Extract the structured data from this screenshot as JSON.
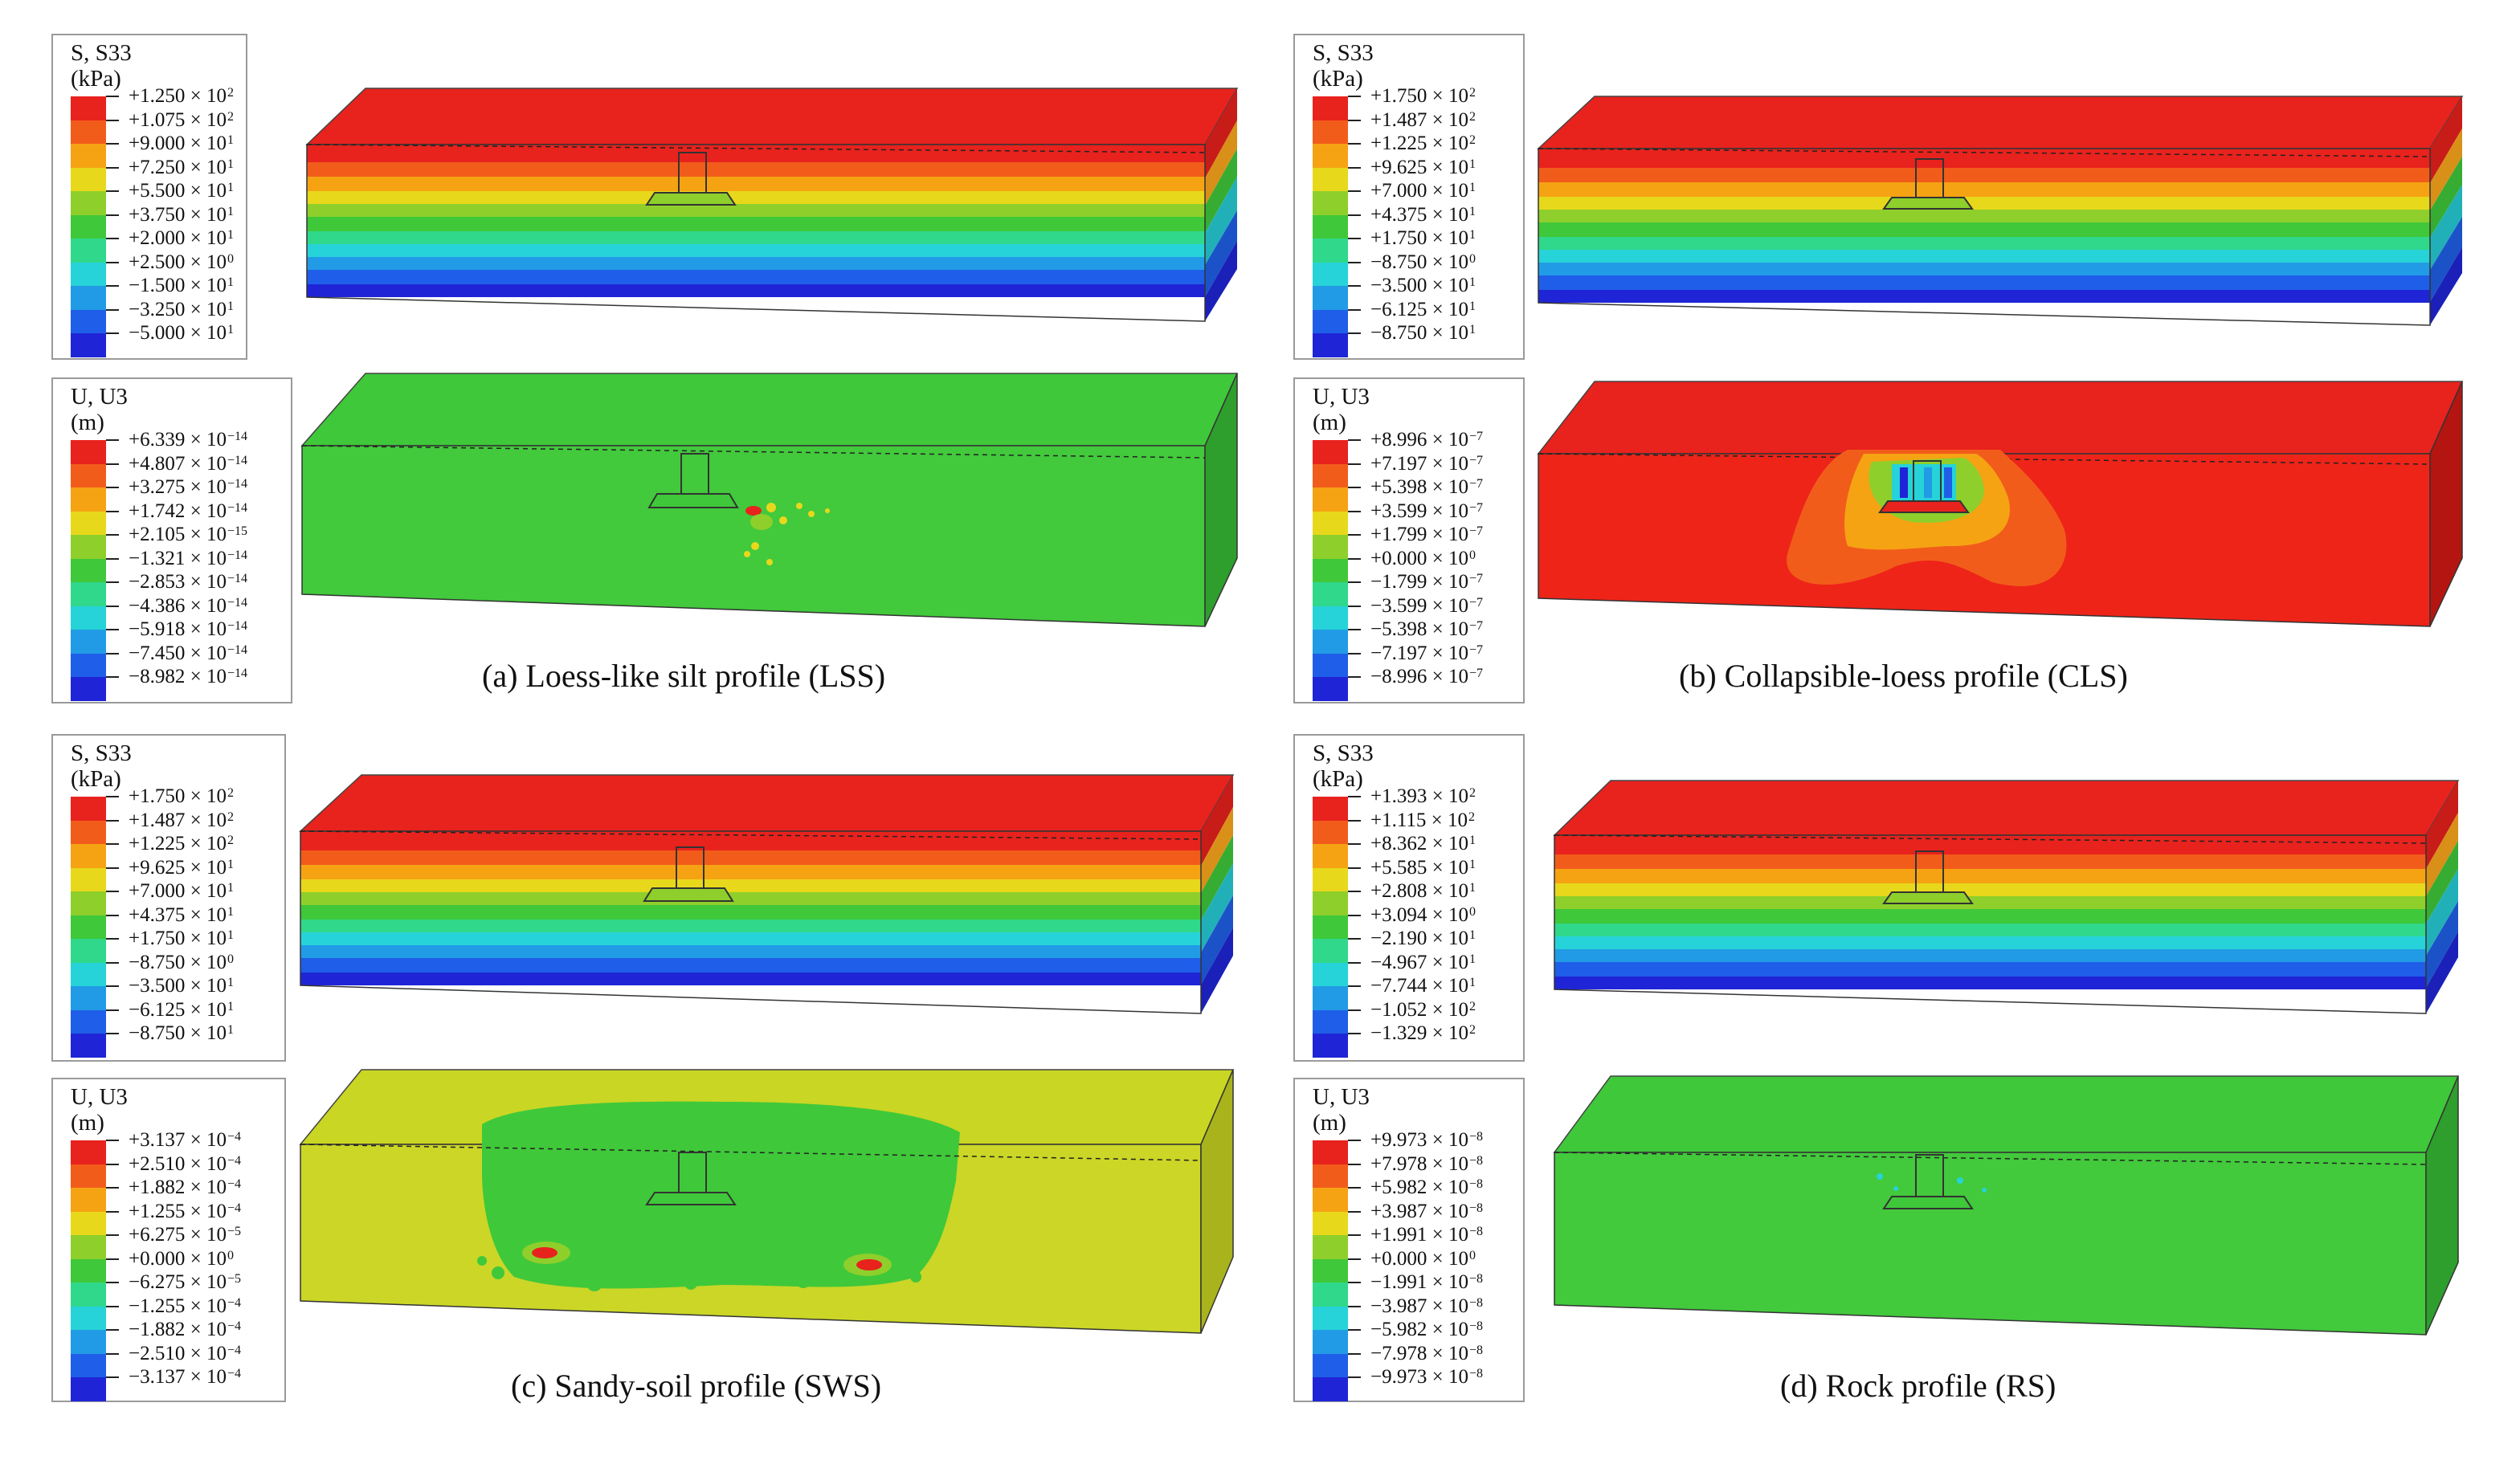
{
  "colormap": [
    "#e8221d",
    "#f25c1b",
    "#f5a313",
    "#e8d81b",
    "#8ecf2b",
    "#3fc83a",
    "#2fd88b",
    "#26d3d8",
    "#229be6",
    "#1f5ee8",
    "#1f25d6"
  ],
  "panels": [
    {
      "id": "a",
      "caption": "(a) Loess-like silt profile (LSS)",
      "stress": {
        "title": "S, S33",
        "unit": "(kPa)",
        "values": [
          "+1.250 × 10",
          "+1.075 × 10",
          "+9.000 × 10",
          "+7.250 × 10",
          "+5.500 × 10",
          "+3.750 × 10",
          "+2.000 × 10",
          "+2.500 × 10",
          "−1.500 × 10",
          "−3.250 × 10",
          "−5.000 × 10"
        ],
        "exponents": [
          "2",
          "2",
          "1",
          "1",
          "1",
          "1",
          "1",
          "0",
          "1",
          "1",
          "1"
        ]
      },
      "disp": {
        "title": "U, U3",
        "unit": "(m)",
        "values": [
          "+6.339 × 10",
          "+4.807 × 10",
          "+3.275 × 10",
          "+1.742 × 10",
          "+2.105 × 10",
          "−1.321 × 10",
          "−2.853 × 10",
          "−4.386 × 10",
          "−5.918 × 10",
          "−7.450 × 10",
          "−8.982 × 10"
        ],
        "exponents": [
          "−14",
          "−14",
          "−14",
          "−14",
          "−15",
          "−14",
          "−14",
          "−14",
          "−14",
          "−14",
          "−14"
        ]
      }
    },
    {
      "id": "b",
      "caption": "(b) Collapsible-loess profile (CLS)",
      "stress": {
        "title": "S, S33",
        "unit": "(kPa)",
        "values": [
          "+1.750 × 10",
          "+1.487 × 10",
          "+1.225 × 10",
          "+9.625 × 10",
          "+7.000 × 10",
          "+4.375 × 10",
          "+1.750 × 10",
          "−8.750 × 10",
          "−3.500 × 10",
          "−6.125 × 10",
          "−8.750 × 10"
        ],
        "exponents": [
          "2",
          "2",
          "2",
          "1",
          "1",
          "1",
          "1",
          "0",
          "1",
          "1",
          "1"
        ]
      },
      "disp": {
        "title": "U, U3",
        "unit": "(m)",
        "values": [
          "+8.996 × 10",
          "+7.197 × 10",
          "+5.398 × 10",
          "+3.599 × 10",
          "+1.799 × 10",
          "+0.000 × 10",
          "−1.799 × 10",
          "−3.599 × 10",
          "−5.398 × 10",
          "−7.197 × 10",
          "−8.996 × 10"
        ],
        "exponents": [
          "−7",
          "−7",
          "−7",
          "−7",
          "−7",
          "0",
          "−7",
          "−7",
          "−7",
          "−7",
          "−7"
        ]
      }
    },
    {
      "id": "c",
      "caption": "(c) Sandy-soil profile (SWS)",
      "stress": {
        "title": "S, S33",
        "unit": "(kPa)",
        "values": [
          "+1.750 × 10",
          "+1.487 × 10",
          "+1.225 × 10",
          "+9.625 × 10",
          "+7.000 × 10",
          "+4.375 × 10",
          "+1.750 × 10",
          "−8.750 × 10",
          "−3.500 × 10",
          "−6.125 × 10",
          "−8.750 × 10"
        ],
        "exponents": [
          "2",
          "2",
          "2",
          "1",
          "1",
          "1",
          "1",
          "0",
          "1",
          "1",
          "1"
        ]
      },
      "disp": {
        "title": "U, U3",
        "unit": "(m)",
        "values": [
          "+3.137 × 10",
          "+2.510 × 10",
          "+1.882 × 10",
          "+1.255 × 10",
          "+6.275 × 10",
          "+0.000 × 10",
          "−6.275 × 10",
          "−1.255 × 10",
          "−1.882 × 10",
          "−2.510 × 10",
          "−3.137 × 10"
        ],
        "exponents": [
          "−4",
          "−4",
          "−4",
          "−4",
          "−5",
          "0",
          "−5",
          "−4",
          "−4",
          "−4",
          "−4"
        ]
      }
    },
    {
      "id": "d",
      "caption": "(d) Rock profile (RS)",
      "stress": {
        "title": "S, S33",
        "unit": "(kPa)",
        "values": [
          "+1.393 × 10",
          "+1.115 × 10",
          "+8.362 × 10",
          "+5.585 × 10",
          "+2.808 × 10",
          "+3.094 × 10",
          "−2.190 × 10",
          "−4.967 × 10",
          "−7.744 × 10",
          "−1.052 × 10",
          "−1.329 × 10"
        ],
        "exponents": [
          "2",
          "2",
          "1",
          "1",
          "1",
          "0",
          "1",
          "1",
          "1",
          "2",
          "2"
        ]
      },
      "disp": {
        "title": "U, U3",
        "unit": "(m)",
        "values": [
          "+9.973 × 10",
          "+7.978 × 10",
          "+5.982 × 10",
          "+3.987 × 10",
          "+1.991 × 10",
          "+0.000 × 10",
          "−1.991 × 10",
          "−3.987 × 10",
          "−5.982 × 10",
          "−7.978 × 10",
          "−9.973 × 10"
        ],
        "exponents": [
          "−8",
          "−8",
          "−8",
          "−8",
          "−8",
          "0",
          "−8",
          "−8",
          "−8",
          "−8",
          "−8"
        ]
      }
    }
  ]
}
